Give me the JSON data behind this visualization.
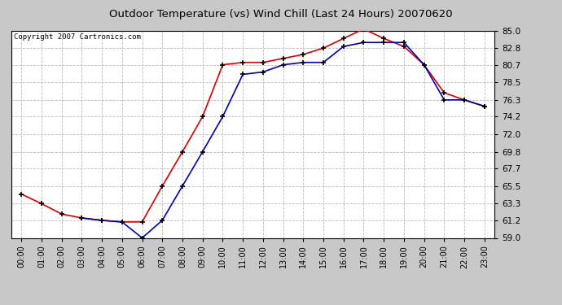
{
  "title": "Outdoor Temperature (vs) Wind Chill (Last 24 Hours) 20070620",
  "copyright": "Copyright 2007 Cartronics.com",
  "hours": [
    0,
    1,
    2,
    3,
    4,
    5,
    6,
    7,
    8,
    9,
    10,
    11,
    12,
    13,
    14,
    15,
    16,
    17,
    18,
    19,
    20,
    21,
    22,
    23
  ],
  "temp": [
    64.5,
    63.3,
    62.0,
    61.5,
    61.2,
    61.0,
    61.0,
    65.5,
    69.8,
    74.2,
    80.7,
    81.0,
    81.0,
    81.5,
    82.0,
    82.8,
    84.0,
    85.2,
    84.0,
    83.0,
    80.7,
    77.2,
    76.3,
    75.5
  ],
  "wc_x": [
    3,
    4,
    5,
    6,
    7,
    8,
    9,
    10,
    11,
    12,
    13,
    14,
    15,
    16,
    17,
    18,
    19,
    20,
    21,
    22,
    23
  ],
  "wc_y": [
    61.5,
    61.2,
    61.0,
    59.0,
    61.2,
    65.5,
    69.8,
    74.2,
    79.5,
    79.8,
    80.7,
    81.0,
    81.0,
    83.0,
    83.5,
    83.5,
    83.5,
    80.7,
    76.3,
    76.3,
    75.5
  ],
  "temp_color": "#dd0000",
  "windchill_color": "#0000bb",
  "bg_color": "#c8c8c8",
  "plot_bg": "#ffffff",
  "grid_color": "#bbbbbb",
  "ylim_min": 59.0,
  "ylim_max": 85.0,
  "yticks": [
    59.0,
    61.2,
    63.3,
    65.5,
    67.7,
    69.8,
    72.0,
    74.2,
    76.3,
    78.5,
    80.7,
    82.8,
    85.0
  ],
  "hour_labels": [
    "00:00",
    "01:00",
    "02:00",
    "03:00",
    "04:00",
    "05:00",
    "06:00",
    "07:00",
    "08:00",
    "09:00",
    "10:00",
    "11:00",
    "12:00",
    "13:00",
    "14:00",
    "15:00",
    "16:00",
    "17:00",
    "18:00",
    "19:00",
    "20:00",
    "21:00",
    "22:00",
    "23:00"
  ]
}
